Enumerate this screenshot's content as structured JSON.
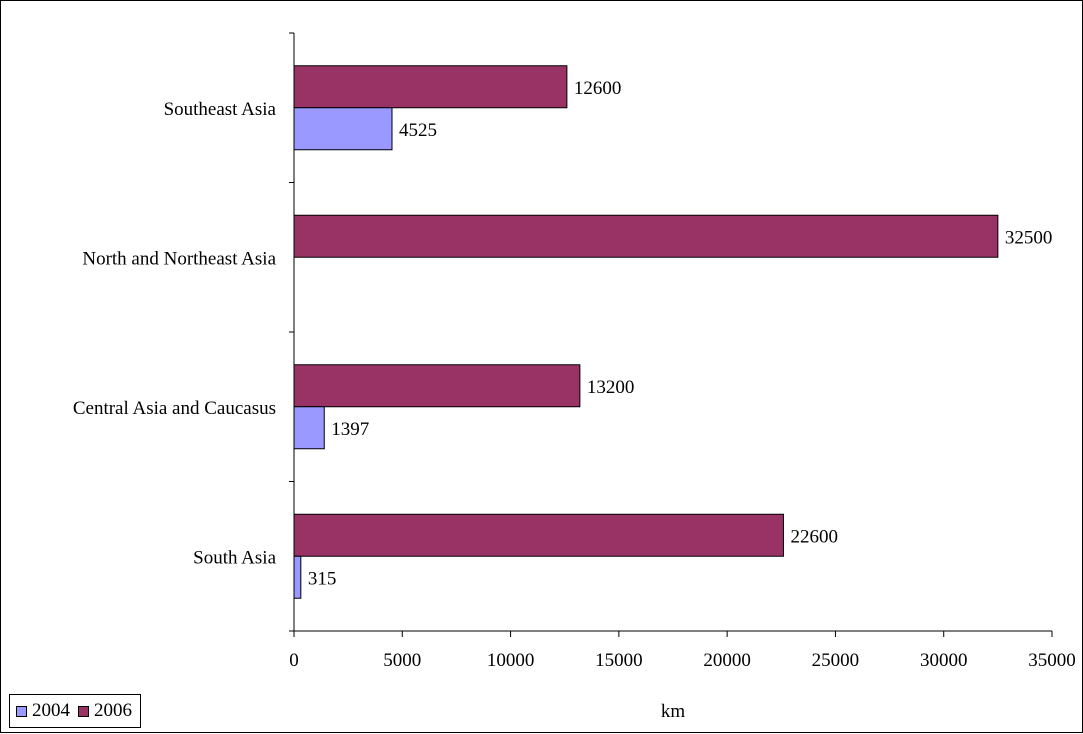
{
  "chart_data": {
    "type": "bar",
    "orientation": "horizontal",
    "categories": [
      "Southeast Asia",
      "North and Northeast Asia",
      "Central Asia and Caucasus",
      "South Asia"
    ],
    "series": [
      {
        "name": "2004",
        "color": "#9999FF",
        "values": [
          4525,
          null,
          1397,
          315
        ]
      },
      {
        "name": "2006",
        "color": "#993366",
        "values": [
          12600,
          32500,
          13200,
          22600
        ]
      }
    ],
    "xlabel": "km",
    "ylabel": "",
    "xlim": [
      0,
      35000
    ],
    "xticks": [
      "0",
      "5000",
      "10000",
      "15000",
      "20000",
      "25000",
      "30000",
      "35000"
    ],
    "legend_position": "bottom-left",
    "grid": false
  }
}
